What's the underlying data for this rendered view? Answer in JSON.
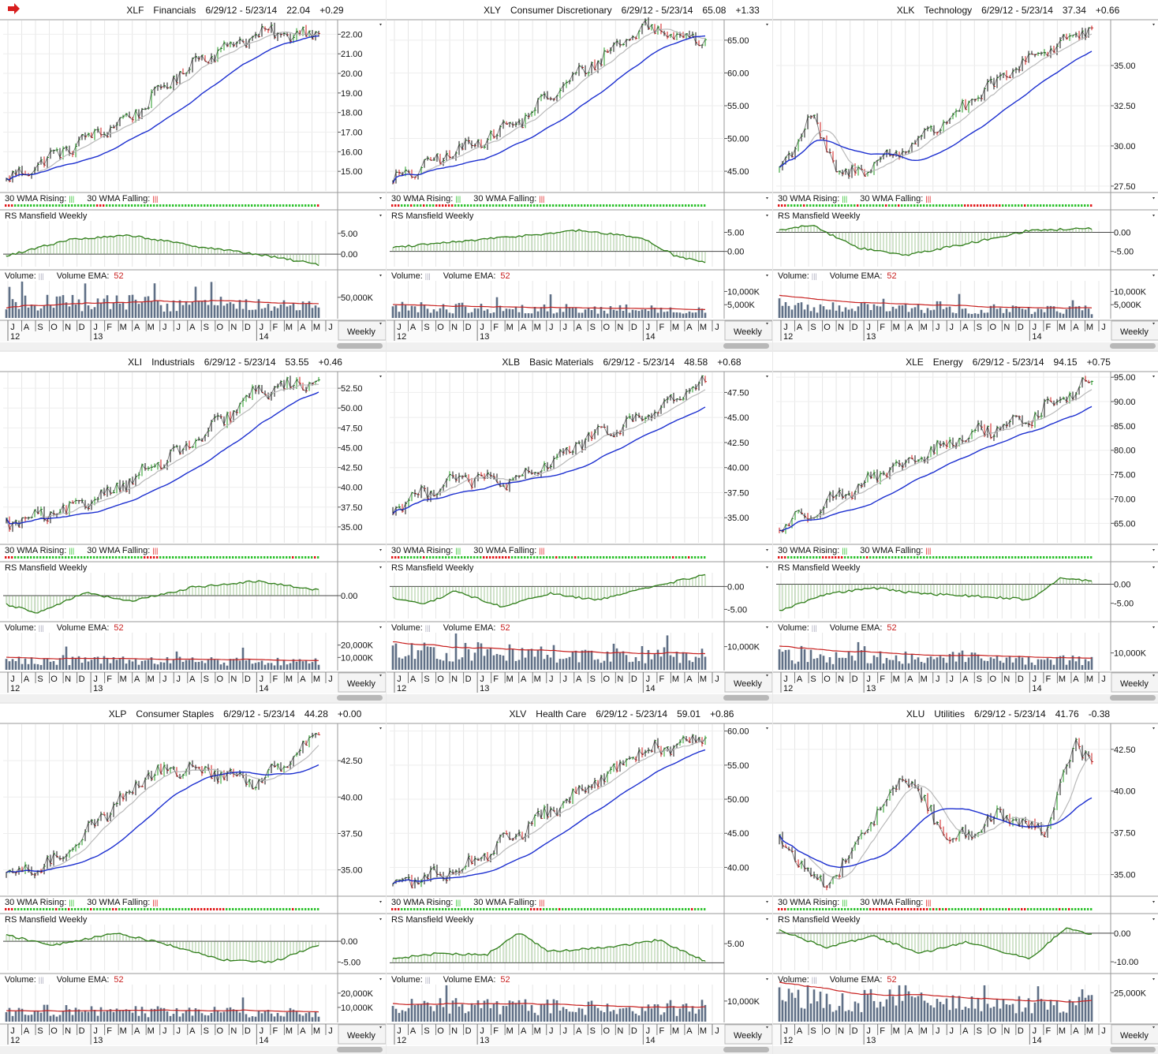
{
  "header_icon": "arrow-right-icon",
  "colors": {
    "price_up": "#1f9a1f",
    "price_down": "#d21a1a",
    "wma30": "#1c2fd0",
    "ma10": "#b9b9b9",
    "rs": "#2e7d18",
    "volume": "#5f6f86",
    "volume_ema": "#c8201f",
    "rising_dot": "#2ec22e",
    "falling_dot": "#e01a1a"
  },
  "labels": {
    "wma_rising": "30 WMA Rising:",
    "wma_falling": "30 WMA Falling:",
    "rs": "RS Mansfield Weekly",
    "volume": "Volume:",
    "volume_ema": "Volume EMA:",
    "volume_ema_period": "52",
    "period": "Weekly"
  },
  "x_axis": {
    "months": [
      "J",
      "A",
      "S",
      "O",
      "N",
      "D",
      "J",
      "F",
      "M",
      "A",
      "M",
      "J",
      "J",
      "A",
      "S",
      "O",
      "N",
      "D",
      "J",
      "F",
      "M",
      "A",
      "M",
      "J"
    ],
    "years": [
      "12",
      "13",
      "14"
    ]
  },
  "chart_data": [
    {
      "type": "line",
      "symbol": "XLF",
      "name": "Financials",
      "range": "6/29/12 - 5/23/14",
      "last": "22.04",
      "change": "+0.29",
      "price": {
        "start": 14.5,
        "end": 22.04,
        "ylim": [
          14.0,
          22.7
        ],
        "ticks": [
          "15.00",
          "16.00",
          "17.00",
          "18.00",
          "19.00",
          "20.00",
          "21.00",
          "22.00"
        ],
        "tick_values": [
          15,
          16,
          17,
          18,
          19,
          20,
          21,
          22
        ],
        "x": [
          0,
          0.2,
          0.4,
          0.6,
          0.8,
          1.0
        ],
        "y": [
          14.5,
          16.2,
          17.8,
          20.6,
          22.0,
          22.04
        ]
      },
      "rs": {
        "ticks": [
          "5.00",
          "0.00"
        ],
        "tick_values": [
          5,
          0
        ],
        "ylim": [
          -3,
          8
        ],
        "x": [
          0,
          0.2,
          0.4,
          0.6,
          0.8,
          1.0
        ],
        "y": [
          -0.5,
          3.5,
          4.5,
          2.0,
          0.0,
          -2.5
        ]
      },
      "volume": {
        "ticks": [
          "50,000K"
        ],
        "tick_values": [
          50000
        ],
        "ylim": [
          0,
          90000
        ]
      },
      "wma_falling_share": 0.05
    },
    {
      "type": "line",
      "symbol": "XLY",
      "name": "Consumer Discretionary",
      "range": "6/29/12 - 5/23/14",
      "last": "65.08",
      "change": "+1.33",
      "price": {
        "start": 43.5,
        "end": 65.08,
        "ylim": [
          42.0,
          68.0
        ],
        "ticks": [
          "45.00",
          "50.00",
          "55.00",
          "60.00",
          "65.00"
        ],
        "tick_values": [
          45,
          50,
          55,
          60,
          65
        ],
        "x": [
          0,
          0.2,
          0.4,
          0.6,
          0.8,
          1.0
        ],
        "y": [
          43.5,
          48.0,
          52.5,
          60.0,
          67.0,
          65.08
        ]
      },
      "rs": {
        "ticks": [
          "5.00",
          "0.00"
        ],
        "tick_values": [
          5,
          0
        ],
        "ylim": [
          -4,
          8
        ],
        "x": [
          0,
          0.2,
          0.4,
          0.6,
          0.8,
          0.9,
          1.0
        ],
        "y": [
          1.0,
          2.5,
          4.0,
          5.5,
          3.5,
          -1.0,
          -3.0
        ]
      },
      "volume": {
        "ticks": [
          "10,000K",
          "5,000K"
        ],
        "tick_values": [
          10000,
          5000
        ],
        "ylim": [
          0,
          14000
        ]
      },
      "wma_falling_share": 0.1
    },
    {
      "type": "line",
      "symbol": "XLK",
      "name": "Technology",
      "range": "6/29/12 - 5/23/14",
      "last": "37.34",
      "change": "+0.66",
      "price": {
        "start": 28.5,
        "end": 37.34,
        "ylim": [
          27.2,
          37.8
        ],
        "ticks": [
          "27.50",
          "30.00",
          "32.50",
          "35.00"
        ],
        "tick_values": [
          27.5,
          30,
          32.5,
          35
        ],
        "x": [
          0,
          0.1,
          0.2,
          0.4,
          0.6,
          0.8,
          1.0
        ],
        "y": [
          28.5,
          31.8,
          28.0,
          29.8,
          32.5,
          35.5,
          37.34
        ]
      },
      "rs": {
        "ticks": [
          "0.00",
          "-5.00"
        ],
        "tick_values": [
          0,
          -5
        ],
        "ylim": [
          -9,
          3
        ],
        "x": [
          0,
          0.1,
          0.25,
          0.4,
          0.6,
          0.8,
          1.0
        ],
        "y": [
          0.5,
          2.0,
          -4.0,
          -6.0,
          -3.0,
          0.5,
          1.0
        ]
      },
      "volume": {
        "ticks": [
          "10,000K",
          "5,000K"
        ],
        "tick_values": [
          10000,
          5000
        ],
        "ylim": [
          0,
          14000
        ]
      },
      "wma_falling_share": 0.2
    },
    {
      "type": "line",
      "symbol": "XLI",
      "name": "Industrials",
      "range": "6/29/12 - 5/23/14",
      "last": "53.55",
      "change": "+0.46",
      "price": {
        "start": 35.5,
        "end": 53.55,
        "ylim": [
          33.0,
          54.5
        ],
        "ticks": [
          "35.00",
          "37.50",
          "40.00",
          "42.50",
          "45.00",
          "47.50",
          "50.00",
          "52.50"
        ],
        "tick_values": [
          35,
          37.5,
          40,
          42.5,
          45,
          47.5,
          50,
          52.5
        ],
        "x": [
          0,
          0.2,
          0.4,
          0.6,
          0.8,
          1.0
        ],
        "y": [
          35.5,
          37.0,
          41.0,
          45.5,
          52.0,
          53.55
        ]
      },
      "rs": {
        "ticks": [
          "0.00"
        ],
        "tick_values": [
          0
        ],
        "ylim": [
          -4,
          4
        ],
        "x": [
          0,
          0.1,
          0.25,
          0.4,
          0.6,
          0.8,
          1.0
        ],
        "y": [
          -1.5,
          -3.0,
          0.5,
          -1.0,
          1.5,
          2.5,
          1.0
        ]
      },
      "volume": {
        "ticks": [
          "20,000K",
          "10,000K"
        ],
        "tick_values": [
          20000,
          10000
        ],
        "ylim": [
          0,
          30000
        ]
      },
      "wma_falling_share": 0.08
    },
    {
      "type": "line",
      "symbol": "XLB",
      "name": "Basic Materials",
      "range": "6/29/12 - 5/23/14",
      "last": "48.58",
      "change": "+0.68",
      "price": {
        "start": 36.0,
        "end": 48.58,
        "ylim": [
          32.5,
          49.5
        ],
        "ticks": [
          "35.00",
          "37.50",
          "40.00",
          "42.50",
          "45.00",
          "47.50"
        ],
        "tick_values": [
          35,
          37.5,
          40,
          42.5,
          45,
          47.5
        ],
        "x": [
          0,
          0.2,
          0.4,
          0.6,
          0.8,
          1.0
        ],
        "y": [
          36.0,
          39.0,
          38.5,
          42.5,
          45.0,
          48.58
        ]
      },
      "rs": {
        "ticks": [
          "0.00",
          "-5.00"
        ],
        "tick_values": [
          0,
          -5
        ],
        "ylim": [
          -7,
          3
        ],
        "x": [
          0,
          0.1,
          0.2,
          0.35,
          0.5,
          0.65,
          0.8,
          1.0
        ],
        "y": [
          -2.5,
          -4.0,
          -1.0,
          -4.5,
          -1.5,
          -3.0,
          -0.5,
          2.5
        ]
      },
      "volume": {
        "ticks": [
          "10,000K"
        ],
        "tick_values": [
          10000
        ],
        "ylim": [
          0,
          16000
        ]
      },
      "wma_falling_share": 0.15
    },
    {
      "type": "line",
      "symbol": "XLE",
      "name": "Energy",
      "range": "6/29/12 - 5/23/14",
      "last": "94.15",
      "change": "+0.75",
      "price": {
        "start": 64.0,
        "end": 94.15,
        "ylim": [
          61.0,
          96.0
        ],
        "ticks": [
          "65.00",
          "70.00",
          "75.00",
          "80.00",
          "85.00",
          "90.00",
          "95.00"
        ],
        "tick_values": [
          65,
          70,
          75,
          80,
          85,
          90,
          95
        ],
        "x": [
          0,
          0.2,
          0.4,
          0.6,
          0.8,
          1.0
        ],
        "y": [
          64.0,
          71.0,
          77.0,
          83.0,
          86.5,
          94.15
        ]
      },
      "rs": {
        "ticks": [
          "0.00",
          "-5.00"
        ],
        "tick_values": [
          0,
          -5
        ],
        "ylim": [
          -9,
          3
        ],
        "x": [
          0,
          0.15,
          0.3,
          0.45,
          0.6,
          0.8,
          0.9,
          1.0
        ],
        "y": [
          -7.0,
          -2.5,
          -1.0,
          -2.5,
          -3.0,
          -4.0,
          1.5,
          1.0
        ]
      },
      "volume": {
        "ticks": [
          "10,000K"
        ],
        "tick_values": [
          10000
        ],
        "ylim": [
          0,
          22000
        ]
      },
      "wma_falling_share": 0.12
    },
    {
      "type": "line",
      "symbol": "XLP",
      "name": "Consumer Staples",
      "range": "6/29/12 - 5/23/14",
      "last": "44.28",
      "change": "+0.00",
      "price": {
        "start": 34.5,
        "end": 44.28,
        "ylim": [
          33.3,
          45.0
        ],
        "ticks": [
          "35.00",
          "37.50",
          "40.00",
          "42.50"
        ],
        "tick_values": [
          35,
          37.5,
          40,
          42.5
        ],
        "x": [
          0,
          0.15,
          0.3,
          0.45,
          0.6,
          0.8,
          1.0
        ],
        "y": [
          34.5,
          35.5,
          38.5,
          41.5,
          42.0,
          41.0,
          44.28
        ]
      },
      "rs": {
        "ticks": [
          "0.00",
          "-5.00"
        ],
        "tick_values": [
          0,
          -5
        ],
        "ylim": [
          -7,
          4
        ],
        "x": [
          0,
          0.15,
          0.35,
          0.5,
          0.7,
          0.85,
          1.0
        ],
        "y": [
          1.5,
          -1.0,
          2.0,
          -0.5,
          -4.5,
          -5.0,
          -1.0
        ]
      },
      "volume": {
        "ticks": [
          "20,000K",
          "10,000K"
        ],
        "tick_values": [
          20000,
          10000
        ],
        "ylim": [
          0,
          26000
        ]
      },
      "wma_falling_share": 0.18
    },
    {
      "type": "line",
      "symbol": "XLV",
      "name": "Health Care",
      "range": "6/29/12 - 5/23/14",
      "last": "59.01",
      "change": "+0.86",
      "price": {
        "start": 37.5,
        "end": 59.01,
        "ylim": [
          36.0,
          61.0
        ],
        "ticks": [
          "40.00",
          "45.00",
          "50.00",
          "55.00",
          "60.00"
        ],
        "tick_values": [
          40,
          45,
          50,
          55,
          60
        ],
        "x": [
          0,
          0.2,
          0.4,
          0.6,
          0.8,
          1.0
        ],
        "y": [
          37.5,
          39.5,
          45.0,
          51.0,
          57.0,
          59.01
        ]
      },
      "rs": {
        "ticks": [
          "5.00"
        ],
        "tick_values": [
          5
        ],
        "ylim": [
          -2,
          10
        ],
        "x": [
          0,
          0.15,
          0.3,
          0.4,
          0.5,
          0.7,
          0.85,
          1.0
        ],
        "y": [
          1.0,
          2.5,
          2.0,
          8.0,
          3.0,
          4.0,
          6.0,
          0.5
        ]
      },
      "volume": {
        "ticks": [
          "10,000K"
        ],
        "tick_values": [
          10000
        ],
        "ylim": [
          0,
          18000
        ]
      },
      "wma_falling_share": 0.05
    },
    {
      "type": "line",
      "symbol": "XLU",
      "name": "Utilities",
      "range": "6/29/12 - 5/23/14",
      "last": "41.76",
      "change": "-0.38",
      "price": {
        "start": 37.0,
        "end": 41.76,
        "ylim": [
          33.8,
          44.0
        ],
        "ticks": [
          "35.00",
          "37.50",
          "40.00",
          "42.50"
        ],
        "tick_values": [
          35,
          37.5,
          40,
          42.5
        ],
        "x": [
          0,
          0.15,
          0.4,
          0.55,
          0.7,
          0.85,
          0.95,
          1.0
        ],
        "y": [
          37.0,
          34.2,
          41.0,
          37.0,
          38.5,
          37.5,
          43.0,
          41.76
        ]
      },
      "rs": {
        "ticks": [
          "0.00",
          "-10.00"
        ],
        "tick_values": [
          0,
          -10
        ],
        "ylim": [
          -13,
          3
        ],
        "x": [
          0,
          0.15,
          0.3,
          0.45,
          0.6,
          0.8,
          0.92,
          1.0
        ],
        "y": [
          1.0,
          -5.0,
          -1.0,
          -7.0,
          -3.0,
          -9.0,
          2.0,
          -0.5
        ]
      },
      "volume": {
        "ticks": [
          "25,000K"
        ],
        "tick_values": [
          25000
        ],
        "ylim": [
          0,
          32000
        ]
      },
      "wma_falling_share": 0.3
    }
  ]
}
